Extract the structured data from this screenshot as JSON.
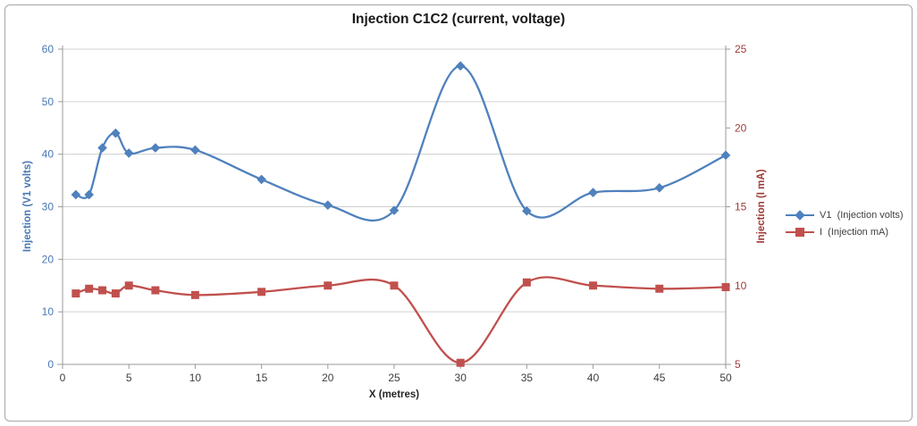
{
  "chart_data": {
    "type": "line",
    "title": "Injection C1C2 (current, voltage)",
    "xlabel": "X (metres)",
    "smooth": true,
    "grid": true,
    "legend_position": "right",
    "x_axis": {
      "min": 0,
      "max": 50,
      "ticks": [
        0,
        5,
        10,
        15,
        20,
        25,
        30,
        35,
        40,
        45,
        50
      ],
      "tick_color": "#3f3f3f",
      "title_color": "#262626"
    },
    "left_axis": {
      "label": "Injection (V1 volts)",
      "min": 0,
      "max": 60,
      "ticks": [
        0,
        10,
        20,
        30,
        40,
        50,
        60
      ],
      "color": "#4878b4"
    },
    "right_axis": {
      "label": "Injection  (I mA)",
      "min": 5,
      "max": 25,
      "ticks": [
        5,
        10,
        15,
        20,
        25
      ],
      "color": "#9e3b38"
    },
    "series": [
      {
        "name": "V1  (Injection volts)",
        "axis": "left",
        "color": "#4f81bd",
        "marker": "diamond",
        "x": [
          1,
          2,
          3,
          4,
          5,
          7,
          10,
          15,
          20,
          25,
          30,
          35,
          40,
          45,
          50
        ],
        "values": [
          32.3,
          32.3,
          41.2,
          44.0,
          40.2,
          41.2,
          40.8,
          35.2,
          30.3,
          29.3,
          56.8,
          29.2,
          32.7,
          33.6,
          39.8
        ]
      },
      {
        "name": "I  (Injection mA)",
        "axis": "right",
        "color": "#c0504d",
        "marker": "square",
        "x": [
          1,
          2,
          3,
          4,
          5,
          7,
          10,
          15,
          20,
          25,
          30,
          35,
          40,
          45,
          50
        ],
        "values": [
          9.5,
          9.8,
          9.7,
          9.5,
          10.0,
          9.7,
          9.4,
          9.6,
          10.0,
          10.0,
          5.1,
          10.2,
          10.0,
          9.8,
          9.9
        ]
      }
    ],
    "colors": {
      "gridline": "#d0d0d0",
      "axis_line": "#9a9a9a",
      "background": "#ffffff",
      "border": "#a6a6a6"
    }
  }
}
